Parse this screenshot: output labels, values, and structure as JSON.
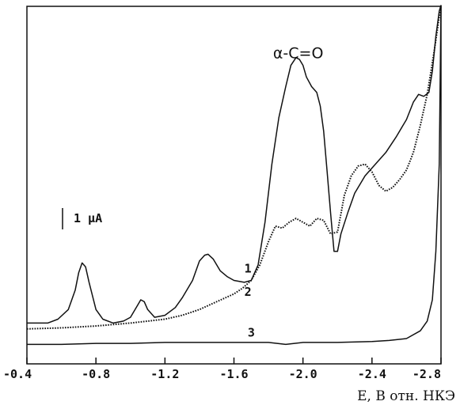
{
  "chart_data": {
    "type": "line",
    "xlabel": "E, В отн. НКЭ",
    "ylabel": "",
    "xlim": [
      -0.4,
      -2.8
    ],
    "x_ticks": [
      "-0.4",
      "-0.8",
      "-1.2",
      "-1.6",
      "-2.0",
      "-2.4",
      "-2.8"
    ],
    "x_tick_values": [
      -0.4,
      -0.8,
      -1.2,
      -1.6,
      -2.0,
      -2.4,
      -2.8
    ],
    "y_units": "relative current (µA)",
    "ylim": [
      0,
      17.2
    ],
    "grid": false,
    "scale_bar": {
      "label": "1 μA",
      "length": 1.0
    },
    "annotations": [
      {
        "text": "α-C=O",
        "x": -2.0,
        "y": 14.3
      }
    ],
    "series": [
      {
        "name": "1",
        "style": "solid",
        "label_at": [
          -1.66,
          3.4
        ],
        "x": [
          -0.4,
          -0.46,
          -0.52,
          -0.58,
          -0.64,
          -0.68,
          -0.7,
          -0.72,
          -0.74,
          -0.76,
          -0.8,
          -0.84,
          -0.9,
          -0.96,
          -1.0,
          -1.04,
          -1.06,
          -1.08,
          -1.1,
          -1.14,
          -1.2,
          -1.26,
          -1.3,
          -1.36,
          -1.4,
          -1.43,
          -1.45,
          -1.48,
          -1.52,
          -1.56,
          -1.6,
          -1.66,
          -1.7,
          -1.74,
          -1.78,
          -1.82,
          -1.86,
          -1.9,
          -1.93,
          -1.96,
          -1.98,
          -2.0,
          -2.02,
          -2.05,
          -2.08,
          -2.1,
          -2.12,
          -2.14,
          -2.16,
          -2.18,
          -2.2,
          -2.22,
          -2.26,
          -2.3,
          -2.36,
          -2.42,
          -2.48,
          -2.54,
          -2.6,
          -2.64,
          -2.67,
          -2.7,
          -2.73,
          -2.75,
          -2.77,
          -2.79,
          -2.8
        ],
        "y": [
          0.8,
          0.8,
          0.8,
          1.0,
          1.5,
          2.5,
          3.4,
          3.9,
          3.7,
          2.9,
          1.5,
          1.0,
          0.8,
          0.9,
          1.1,
          1.7,
          2.0,
          1.9,
          1.5,
          1.1,
          1.2,
          1.6,
          2.1,
          3.0,
          4.0,
          4.3,
          4.35,
          4.1,
          3.5,
          3.2,
          3.0,
          2.9,
          3.0,
          3.8,
          6.0,
          9.0,
          11.4,
          13.0,
          14.1,
          14.5,
          14.4,
          14.1,
          13.5,
          13.0,
          12.7,
          12.0,
          10.7,
          8.6,
          6.5,
          4.5,
          4.5,
          5.4,
          6.5,
          7.5,
          8.4,
          9.0,
          9.6,
          10.4,
          11.3,
          12.2,
          12.6,
          12.5,
          12.7,
          13.8,
          15.6,
          16.9,
          17.2
        ]
      },
      {
        "name": "2",
        "style": "dotted",
        "label_at": [
          -1.66,
          2.2
        ],
        "x": [
          -0.4,
          -0.6,
          -0.8,
          -1.0,
          -1.2,
          -1.3,
          -1.4,
          -1.5,
          -1.6,
          -1.65,
          -1.7,
          -1.75,
          -1.8,
          -1.84,
          -1.88,
          -1.92,
          -1.96,
          -2.0,
          -2.04,
          -2.08,
          -2.12,
          -2.16,
          -2.2,
          -2.24,
          -2.28,
          -2.32,
          -2.36,
          -2.4,
          -2.44,
          -2.48,
          -2.52,
          -2.56,
          -2.6,
          -2.64,
          -2.68,
          -2.72,
          -2.76,
          -2.8
        ],
        "y": [
          0.5,
          0.55,
          0.65,
          0.8,
          1.0,
          1.2,
          1.5,
          1.9,
          2.3,
          2.6,
          3.0,
          3.8,
          5.0,
          5.8,
          5.7,
          6.0,
          6.2,
          6.0,
          5.8,
          6.2,
          6.1,
          5.4,
          5.5,
          7.4,
          8.4,
          8.9,
          9.0,
          8.6,
          7.9,
          7.6,
          7.8,
          8.2,
          8.7,
          9.6,
          11.0,
          12.6,
          14.8,
          17.2
        ]
      },
      {
        "name": "3",
        "style": "solid",
        "label_at": [
          -1.68,
          0.1
        ],
        "x": [
          -0.4,
          -0.6,
          -0.8,
          -1.0,
          -1.2,
          -1.4,
          -1.6,
          -1.8,
          -1.9,
          -2.0,
          -2.2,
          -2.4,
          -2.5,
          -2.6,
          -2.68,
          -2.72,
          -2.75,
          -2.77,
          -2.79,
          -2.8
        ],
        "y": [
          -0.3,
          -0.3,
          -0.25,
          -0.25,
          -0.2,
          -0.2,
          -0.2,
          -0.2,
          -0.3,
          -0.2,
          -0.2,
          -0.15,
          -0.1,
          0.0,
          0.4,
          0.9,
          2.0,
          4.5,
          9.0,
          17.2
        ]
      }
    ]
  }
}
